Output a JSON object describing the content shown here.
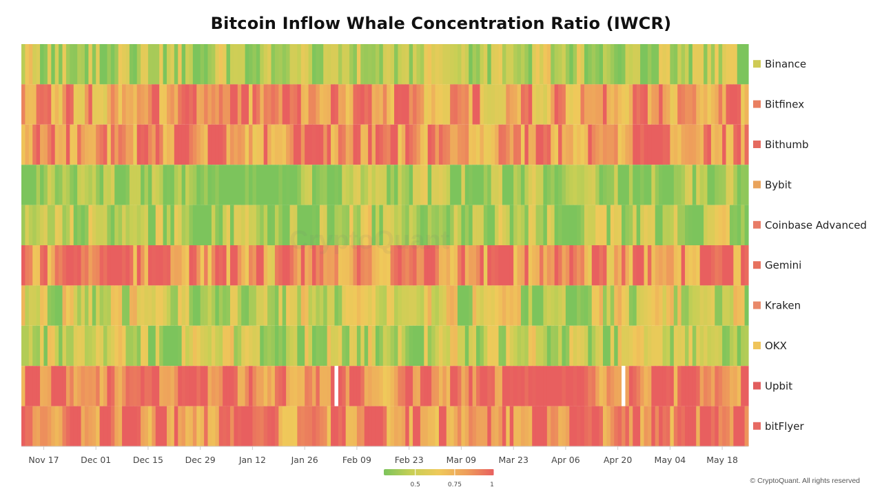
{
  "watermark": "CryptoQuant",
  "footer": "© CryptoQuant. All rights reserved",
  "chart_data": {
    "type": "heatmap",
    "title": "Bitcoin Inflow Whale Concentration Ratio (IWCR)",
    "rows": [
      "Binance",
      "Bitfinex",
      "Bithumb",
      "Bybit",
      "Coinbase Advanced",
      "Gemini",
      "Kraken",
      "OKX",
      "Upbit",
      "bitFlyer"
    ],
    "row_colors": [
      "#cfca55",
      "#e97f61",
      "#e56a5f",
      "#e9a35c",
      "#e87b66",
      "#e7725f",
      "#e9896a",
      "#efc45a",
      "#e25e5e",
      "#e76a63"
    ],
    "x_range": [
      "2024-11-11",
      "2025-05-25"
    ],
    "x_ticks": [
      "Nov 17",
      "Dec 01",
      "Dec 15",
      "Dec 29",
      "Jan 12",
      "Jan 26",
      "Feb 09",
      "Feb 23",
      "Mar 09",
      "Mar 23",
      "Apr 06",
      "Apr 20",
      "May 04",
      "May 18"
    ],
    "approx_row_means": [
      0.55,
      0.88,
      0.9,
      0.48,
      0.55,
      0.88,
      0.62,
      0.58,
      0.95,
      0.93
    ],
    "gaps": [
      {
        "row": "Upbit",
        "date": "2025-02-03"
      },
      {
        "row": "Upbit",
        "date": "2025-04-21"
      }
    ],
    "color_scale": {
      "colors": [
        "#7cc45c",
        "#c7cf55",
        "#efc95a",
        "#ee9e5b",
        "#e85f5f"
      ],
      "ticks": [
        0.5,
        0.75,
        1
      ]
    },
    "legend_position": "right"
  }
}
